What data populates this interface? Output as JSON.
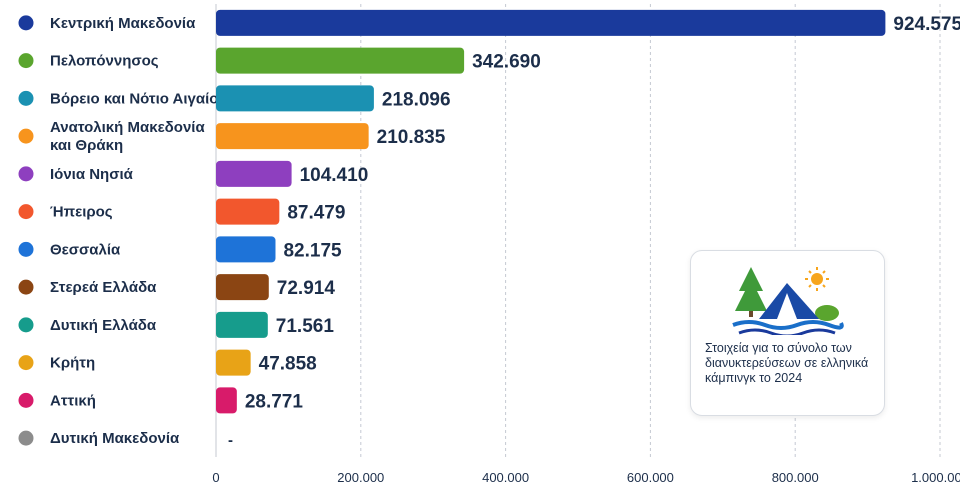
{
  "chart_data": {
    "type": "bar",
    "orientation": "horizontal",
    "categories": [
      {
        "label": "Κεντρική Μακεδονία",
        "lines": [
          "Κεντρική Μακεδονία"
        ],
        "value": 924575,
        "value_label": "924.575",
        "color": "#1a3a9c"
      },
      {
        "label": "Πελοπόννησος",
        "lines": [
          "Πελοπόννησος"
        ],
        "value": 342690,
        "value_label": "342.690",
        "color": "#5aa52e"
      },
      {
        "label": "Βόρειο και Νότιο Αιγαίο",
        "lines": [
          "Βόρειο και Νότιο Αιγαίο"
        ],
        "value": 218096,
        "value_label": "218.096",
        "color": "#1b91b2"
      },
      {
        "label": "Ανατολική Μακεδονία και Θράκη",
        "lines": [
          "Ανατολική Μακεδονία",
          "και Θράκη"
        ],
        "value": 210835,
        "value_label": "210.835",
        "color": "#f7941d"
      },
      {
        "label": "Ιόνια Νησιά",
        "lines": [
          "Ιόνια Νησιά"
        ],
        "value": 104410,
        "value_label": "104.410",
        "color": "#8e3fbf"
      },
      {
        "label": "Ήπειρος",
        "lines": [
          "Ήπειρος"
        ],
        "value": 87479,
        "value_label": "87.479",
        "color": "#f2572d"
      },
      {
        "label": "Θεσσαλία",
        "lines": [
          "Θεσσαλία"
        ],
        "value": 82175,
        "value_label": "82.175",
        "color": "#1e73d8"
      },
      {
        "label": "Στερεά Ελλάδα",
        "lines": [
          "Στερεά Ελλάδα"
        ],
        "value": 72914,
        "value_label": "72.914",
        "color": "#8b4513"
      },
      {
        "label": "Δυτική Ελλάδα",
        "lines": [
          "Δυτική Ελλάδα"
        ],
        "value": 71561,
        "value_label": "71.561",
        "color": "#169c8c"
      },
      {
        "label": "Κρήτη",
        "lines": [
          "Κρήτη"
        ],
        "value": 47858,
        "value_label": "47.858",
        "color": "#e8a317"
      },
      {
        "label": "Αττική",
        "lines": [
          "Αττική"
        ],
        "value": 28771,
        "value_label": "28.771",
        "color": "#d81b6a"
      },
      {
        "label": "Δυτική Μακεδονία",
        "lines": [
          "Δυτική Μακεδονία"
        ],
        "value": null,
        "value_label": "-",
        "color": "#8c8c8c"
      }
    ],
    "xlim": [
      0,
      1000000
    ],
    "xticks": [
      {
        "value": 0,
        "label": "0"
      },
      {
        "value": 200000,
        "label": "200.000"
      },
      {
        "value": 400000,
        "label": "400.000"
      },
      {
        "value": 600000,
        "label": "600.000"
      },
      {
        "value": 800000,
        "label": "800.000"
      },
      {
        "value": 1000000,
        "label": "1.000.000"
      }
    ],
    "grid": "vertical dashed",
    "title": "",
    "xlabel": "",
    "ylabel": ""
  },
  "info_card": {
    "icon": "camping-tent-icon",
    "text": "Στοιχεία για το σύνολο των διανυκτερεύσεων σε ελληνικά κάμπινγκ το 2024"
  }
}
